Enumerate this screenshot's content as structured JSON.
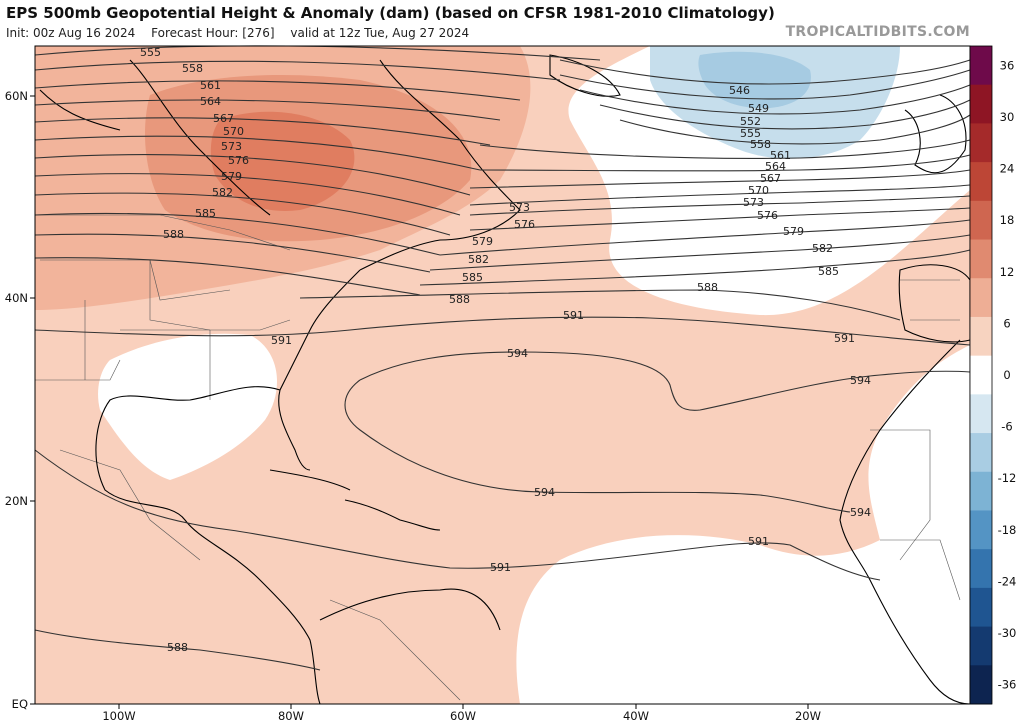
{
  "title": "EPS 500mb Geopotential Height & Anomaly (dam) (based on CFSR 1981-2010 Climatology)",
  "subtitle": {
    "init": "Init: 00z Aug 16 2024",
    "forecast_hour": "Forecast Hour: [276]",
    "valid": "valid at 12z Tue, Aug 27 2024"
  },
  "brand": "TROPICALTIDBITS.COM",
  "axes": {
    "lon_labels": [
      "100W",
      "80W",
      "60W",
      "40W",
      "20W"
    ],
    "lat_labels": [
      "60N",
      "40N",
      "20N",
      "EQ"
    ]
  },
  "colorbar": {
    "ticks": [
      "36",
      "30",
      "24",
      "18",
      "12",
      "6",
      "0",
      "-6",
      "-12",
      "-18",
      "-24",
      "-30",
      "-36"
    ],
    "colors": [
      "#6e0a4a",
      "#8e1524",
      "#a52a2a",
      "#bd4636",
      "#cf6650",
      "#e08a70",
      "#eeae95",
      "#f7d3c0",
      "#ffffff",
      "#d6e7f1",
      "#a9cde3",
      "#7db3d4",
      "#5494c4",
      "#3474ae",
      "#1f5591",
      "#143a70",
      "#0d2450"
    ]
  },
  "contour_labels": [
    "546",
    "549",
    "552",
    "555",
    "558",
    "561",
    "564",
    "567",
    "570",
    "573",
    "576",
    "579",
    "582",
    "585",
    "588",
    "591",
    "594"
  ],
  "contour_label_instances": {
    "left": [
      "555",
      "558",
      "561",
      "564",
      "567",
      "570",
      "573",
      "576",
      "579",
      "582",
      "585",
      "588",
      "591"
    ],
    "east": [
      "546",
      "549",
      "552",
      "555",
      "558",
      "561",
      "564",
      "567",
      "570",
      "573",
      "576",
      "579",
      "582",
      "585",
      "588",
      "591",
      "594",
      "594",
      "594",
      "591",
      "588"
    ],
    "mid": [
      "573",
      "576",
      "579",
      "582",
      "585",
      "588",
      "591",
      "594",
      "591"
    ]
  },
  "colors": {
    "positive_light": "#f9d0bd",
    "positive_mid": "#f2b49b",
    "positive_strong": "#e8987c",
    "positive_max": "#e07d60",
    "negative_light": "#c6deec",
    "negative_mid": "#a6cbe2",
    "contour": "#333333",
    "coast": "#000000"
  }
}
